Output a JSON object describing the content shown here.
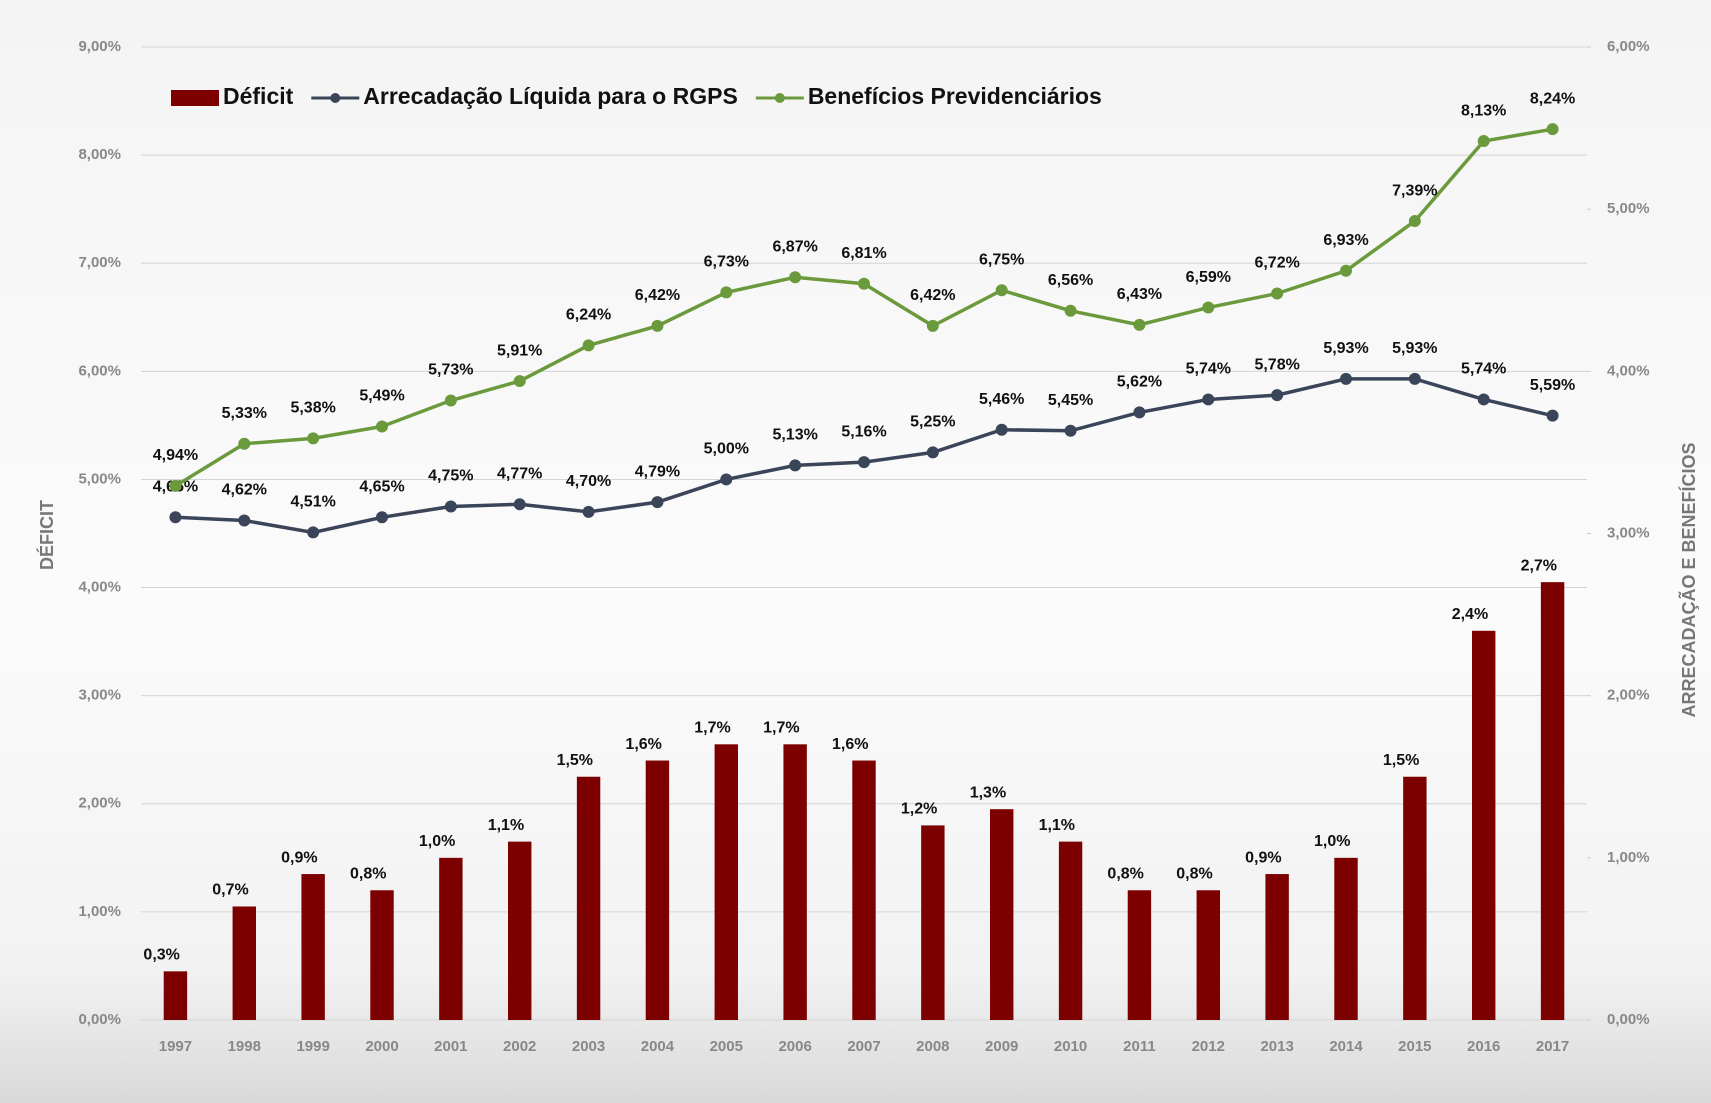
{
  "chart_data": {
    "type": "bar",
    "categories": [
      "1997",
      "1998",
      "1999",
      "2000",
      "2001",
      "2002",
      "2003",
      "2004",
      "2005",
      "2006",
      "2007",
      "2008",
      "2009",
      "2010",
      "2011",
      "2012",
      "2013",
      "2014",
      "2015",
      "2016",
      "2017"
    ],
    "ylabel": "DÉFICIT",
    "y2label": "ARRECADAÇÃO E BENEFÍCIOS",
    "ylim": [
      0,
      9
    ],
    "yticks": [
      {
        "value": 0,
        "label": "0,00%"
      },
      {
        "value": 1,
        "label": "1,00%"
      },
      {
        "value": 2,
        "label": "2,00%"
      },
      {
        "value": 3,
        "label": "3,00%"
      },
      {
        "value": 4,
        "label": "4,00%"
      },
      {
        "value": 5,
        "label": "5,00%"
      },
      {
        "value": 6,
        "label": "6,00%"
      },
      {
        "value": 7,
        "label": "7,00%"
      },
      {
        "value": 8,
        "label": "8,00%"
      },
      {
        "value": 9,
        "label": "9,00%"
      }
    ],
    "y2lim": [
      0,
      6
    ],
    "y2ticks": [
      {
        "value": 0,
        "label": "0,00%"
      },
      {
        "value": 1,
        "label": "1,00%"
      },
      {
        "value": 2,
        "label": "2,00%"
      },
      {
        "value": 3,
        "label": "3,00%"
      },
      {
        "value": 4,
        "label": "4,00%"
      },
      {
        "value": 5,
        "label": "5,00%"
      },
      {
        "value": 6,
        "label": "6,00%"
      }
    ],
    "grid": true,
    "legend": "top-left",
    "series": [
      {
        "name": "Déficit",
        "type": "bar",
        "axis": "y2",
        "color": "#7d0000",
        "values": [
          0.3,
          0.7,
          0.9,
          0.8,
          1.0,
          1.1,
          1.5,
          1.6,
          1.7,
          1.7,
          1.6,
          1.2,
          1.3,
          1.1,
          0.8,
          0.8,
          0.9,
          1.0,
          1.5,
          2.4,
          2.7
        ],
        "value_labels": [
          "0,3%",
          "0,7%",
          "0,9%",
          "0,8%",
          "1,0%",
          "1,1%",
          "1,5%",
          "1,6%",
          "1,7%",
          "1,7%",
          "1,6%",
          "1,2%",
          "1,3%",
          "1,1%",
          "0,8%",
          "0,8%",
          "0,9%",
          "1,0%",
          "1,5%",
          "2,4%",
          "2,7%"
        ]
      },
      {
        "name": "Arrecadação Líquida para o RGPS",
        "type": "line",
        "color": "#3b4559",
        "values": [
          4.65,
          4.62,
          4.51,
          4.65,
          4.75,
          4.77,
          4.7,
          4.79,
          5.0,
          5.13,
          5.16,
          5.25,
          5.46,
          5.45,
          5.62,
          5.74,
          5.78,
          5.93,
          5.93,
          5.74,
          5.59
        ],
        "value_labels": [
          "4,65%",
          "4,62%",
          "4,51%",
          "4,65%",
          "4,75%",
          "4,77%",
          "4,70%",
          "4,79%",
          "5,00%",
          "5,13%",
          "5,16%",
          "5,25%",
          "5,46%",
          "5,45%",
          "5,62%",
          "5,74%",
          "5,78%",
          "5,93%",
          "5,93%",
          "5,74%",
          "5,59%"
        ]
      },
      {
        "name": "Benefícios Previdenciários",
        "type": "line",
        "color": "#6b9a3c",
        "values": [
          4.94,
          5.33,
          5.38,
          5.49,
          5.73,
          5.91,
          6.24,
          6.42,
          6.73,
          6.87,
          6.81,
          6.42,
          6.75,
          6.56,
          6.43,
          6.59,
          6.72,
          6.93,
          7.39,
          8.13,
          8.24
        ],
        "value_labels": [
          "4,94%",
          "5,33%",
          "5,38%",
          "5,49%",
          "5,73%",
          "5,91%",
          "6,24%",
          "6,42%",
          "6,73%",
          "6,87%",
          "6,81%",
          "6,42%",
          "6,75%",
          "6,56%",
          "6,43%",
          "6,59%",
          "6,72%",
          "6,93%",
          "7,39%",
          "8,13%",
          "8,24%"
        ]
      }
    ]
  }
}
